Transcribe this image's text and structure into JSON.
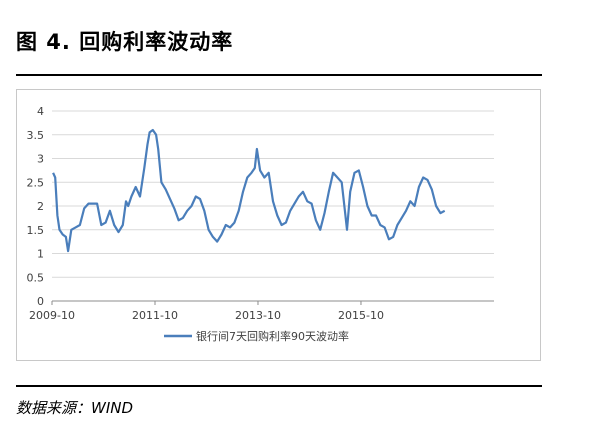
{
  "figure": {
    "title": "图 4.  回购利率波动率",
    "source": "数据来源：WIND"
  },
  "chart_data": {
    "type": "line",
    "title": "",
    "xlabel": "",
    "ylabel": "",
    "ylim": [
      0,
      4
    ],
    "yticks": [
      "0",
      "0.5",
      "1",
      "1.5",
      "2",
      "2.5",
      "3",
      "3.5",
      "4"
    ],
    "xticks": [
      "2009-10",
      "2011-10",
      "2013-10",
      "2015-10"
    ],
    "xrange": [
      "2009-10",
      "2018-05"
    ],
    "grid": "horizontal",
    "legend_position": "bottom",
    "color": "#4a7ebb",
    "series": [
      {
        "name": "银行间7天回购利率90天波动率",
        "points": [
          [
            "2009-10",
            2.7
          ],
          [
            "2009-10",
            2.6
          ],
          [
            "2009-11",
            1.8
          ],
          [
            "2009-11",
            1.5
          ],
          [
            "2009-12",
            1.4
          ],
          [
            "2010-01",
            1.35
          ],
          [
            "2010-01",
            1.05
          ],
          [
            "2010-02",
            1.5
          ],
          [
            "2010-03",
            1.55
          ],
          [
            "2010-04",
            1.6
          ],
          [
            "2010-05",
            1.95
          ],
          [
            "2010-06",
            2.05
          ],
          [
            "2010-07",
            2.05
          ],
          [
            "2010-08",
            2.05
          ],
          [
            "2010-09",
            1.6
          ],
          [
            "2010-10",
            1.65
          ],
          [
            "2010-11",
            1.9
          ],
          [
            "2010-12",
            1.6
          ],
          [
            "2011-01",
            1.45
          ],
          [
            "2011-02",
            1.6
          ],
          [
            "2011-03",
            2.1
          ],
          [
            "2011-03",
            2.0
          ],
          [
            "2011-04",
            2.2
          ],
          [
            "2011-05",
            2.4
          ],
          [
            "2011-06",
            2.2
          ],
          [
            "2011-07",
            2.8
          ],
          [
            "2011-08",
            3.3
          ],
          [
            "2011-08",
            3.55
          ],
          [
            "2011-09",
            3.6
          ],
          [
            "2011-10",
            3.5
          ],
          [
            "2011-10",
            3.2
          ],
          [
            "2011-11",
            2.5
          ],
          [
            "2011-12",
            2.35
          ],
          [
            "2012-01",
            2.15
          ],
          [
            "2012-02",
            1.95
          ],
          [
            "2012-03",
            1.7
          ],
          [
            "2012-04",
            1.75
          ],
          [
            "2012-05",
            1.9
          ],
          [
            "2012-06",
            2.0
          ],
          [
            "2012-07",
            2.2
          ],
          [
            "2012-08",
            2.15
          ],
          [
            "2012-09",
            1.9
          ],
          [
            "2012-10",
            1.5
          ],
          [
            "2012-11",
            1.35
          ],
          [
            "2012-12",
            1.25
          ],
          [
            "2013-01",
            1.4
          ],
          [
            "2013-02",
            1.6
          ],
          [
            "2013-03",
            1.55
          ],
          [
            "2013-04",
            1.65
          ],
          [
            "2013-05",
            1.9
          ],
          [
            "2013-06",
            2.3
          ],
          [
            "2013-07",
            2.6
          ],
          [
            "2013-08",
            2.7
          ],
          [
            "2013-09",
            2.8
          ],
          [
            "2013-09",
            3.2
          ],
          [
            "2013-10",
            2.75
          ],
          [
            "2013-11",
            2.6
          ],
          [
            "2013-12",
            2.7
          ],
          [
            "2014-01",
            2.1
          ],
          [
            "2014-02",
            1.8
          ],
          [
            "2014-03",
            1.6
          ],
          [
            "2014-04",
            1.65
          ],
          [
            "2014-05",
            1.9
          ],
          [
            "2014-06",
            2.05
          ],
          [
            "2014-07",
            2.2
          ],
          [
            "2014-08",
            2.3
          ],
          [
            "2014-09",
            2.1
          ],
          [
            "2014-10",
            2.05
          ],
          [
            "2014-11",
            1.7
          ],
          [
            "2014-12",
            1.5
          ],
          [
            "2015-01",
            1.85
          ],
          [
            "2015-02",
            2.3
          ],
          [
            "2015-03",
            2.7
          ],
          [
            "2015-04",
            2.6
          ],
          [
            "2015-05",
            2.5
          ],
          [
            "2015-06",
            1.9
          ],
          [
            "2015-06",
            1.5
          ],
          [
            "2015-07",
            2.3
          ],
          [
            "2015-08",
            2.7
          ],
          [
            "2015-09",
            2.75
          ],
          [
            "2015-10",
            2.4
          ],
          [
            "2015-11",
            2.0
          ],
          [
            "2015-12",
            1.8
          ],
          [
            "2016-01",
            1.8
          ],
          [
            "2016-02",
            1.6
          ],
          [
            "2016-03",
            1.55
          ],
          [
            "2016-04",
            1.3
          ],
          [
            "2016-05",
            1.35
          ],
          [
            "2016-06",
            1.6
          ],
          [
            "2016-07",
            1.75
          ],
          [
            "2016-08",
            1.9
          ],
          [
            "2016-09",
            2.1
          ],
          [
            "2016-10",
            2.0
          ],
          [
            "2016-11",
            2.4
          ],
          [
            "2016-12",
            2.6
          ],
          [
            "2017-01",
            2.55
          ],
          [
            "2017-02",
            2.35
          ],
          [
            "2017-03",
            2.0
          ],
          [
            "2017-04",
            1.85
          ],
          [
            "2017-05",
            1.9
          ]
        ]
      }
    ]
  }
}
